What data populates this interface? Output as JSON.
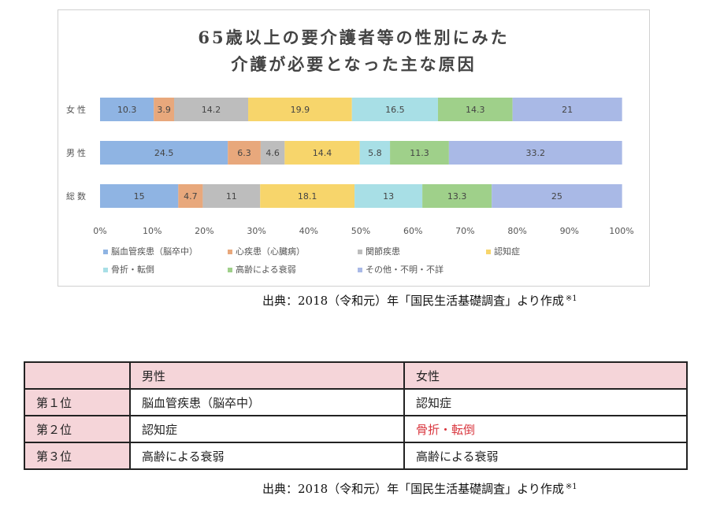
{
  "chart_data": {
    "type": "bar",
    "stacked": true,
    "orientation": "horizontal",
    "title_lines": [
      "65歳以上の要介護者等の性別にみた",
      "介護が必要となった主な原因"
    ],
    "categories": [
      "女性",
      "男性",
      "総数"
    ],
    "xlim": [
      0,
      100
    ],
    "x_ticks": [
      "0%",
      "10%",
      "20%",
      "30%",
      "40%",
      "50%",
      "60%",
      "70%",
      "80%",
      "90%",
      "100%"
    ],
    "legend_position": "bottom",
    "series": [
      {
        "name": "脳血管疾患（脳卒中）",
        "color": "#8fb4e3",
        "values": [
          10.3,
          24.5,
          15
        ]
      },
      {
        "name": "心疾患（心臓病）",
        "color": "#e8a87c",
        "values": [
          3.9,
          6.3,
          4.7
        ]
      },
      {
        "name": "関節疾患",
        "color": "#bdbdbd",
        "values": [
          14.2,
          4.6,
          11
        ]
      },
      {
        "name": "認知症",
        "color": "#f7d56b",
        "values": [
          19.9,
          14.4,
          18.1
        ]
      },
      {
        "name": "骨折・転倒",
        "color": "#a8dfe6",
        "values": [
          16.5,
          5.8,
          13
        ]
      },
      {
        "name": "高齢による衰弱",
        "color": "#9fd08a",
        "values": [
          14.3,
          11.3,
          13.3
        ]
      },
      {
        "name": "その他・不明・不詳",
        "color": "#a9b9e6",
        "values": [
          21,
          33.2,
          25
        ]
      }
    ],
    "data_labels": [
      [
        "10.3",
        "24.5",
        "15"
      ],
      [
        "3.9",
        "6.3",
        "4.7"
      ],
      [
        "14.2",
        "4.6",
        "11"
      ],
      [
        "19.9",
        "14.4",
        "18.1"
      ],
      [
        "16.5",
        "5.8",
        "13"
      ],
      [
        "14.3",
        "11.3",
        "13.3"
      ],
      [
        "21",
        "33.2",
        "25"
      ]
    ]
  },
  "source_text": "出典：2018（令和元）年「国民生活基礎調査」より作成",
  "source_mark": "※1",
  "table": {
    "headers": [
      "",
      "男性",
      "女性"
    ],
    "rows": [
      {
        "rank": "第１位",
        "male": "脳血管疾患（脳卒中）",
        "female": "認知症"
      },
      {
        "rank": "第２位",
        "male": "認知症",
        "female": "骨折・転倒"
      },
      {
        "rank": "第３位",
        "male": "高齢による衰弱",
        "female": "高齢による衰弱"
      }
    ],
    "highlight_color": "#d9363e"
  }
}
